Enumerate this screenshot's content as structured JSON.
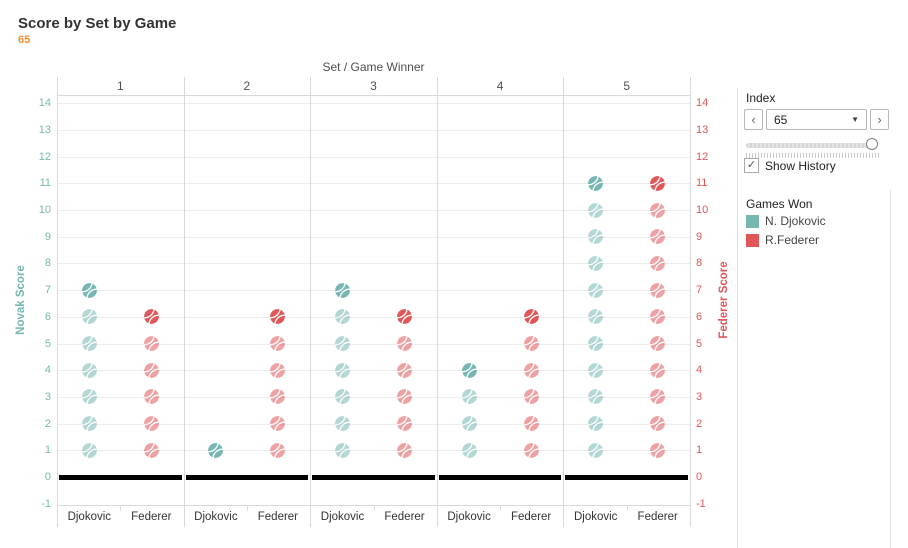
{
  "header": {
    "title": "Score by Set by Game",
    "index_value": "65"
  },
  "chart_data": {
    "type": "scatter",
    "title": "Score by Set by Game",
    "col_header": "Set / Game Winner",
    "marker": "tennis-ball-icon",
    "left_axis": {
      "label": "Novak Score",
      "color": "#76B7B2"
    },
    "right_axis": {
      "label": "Federer Score",
      "color": "#E15759"
    },
    "y_ticks": [
      14,
      13,
      12,
      11,
      10,
      9,
      8,
      7,
      6,
      5,
      4,
      3,
      2,
      1,
      0,
      -1
    ],
    "ylim": [
      -1.1,
      14.4
    ],
    "grid": true,
    "zero_line_color": "#000000",
    "history_shown": true,
    "categories": [
      "1",
      "2",
      "3",
      "4",
      "5"
    ],
    "column_labels": [
      "Djokovic",
      "Federer"
    ],
    "series": [
      {
        "name": "Djokovic",
        "color": "#76B7B2",
        "scores_by_set": [
          7,
          1,
          7,
          4,
          11
        ]
      },
      {
        "name": "Federer",
        "color": "#E15759",
        "scores_by_set": [
          6,
          6,
          6,
          6,
          11
        ]
      }
    ]
  },
  "side_panel": {
    "index": {
      "label": "Index",
      "value": "65",
      "prev_icon": "‹",
      "next_icon": "›",
      "caret_icon": "▼"
    },
    "show_history": {
      "label": "Show History",
      "checked": true,
      "check_icon": "✓"
    },
    "legend": {
      "title": "Games Won",
      "items": [
        {
          "label": "N. Djokovic",
          "color": "#76B7B2"
        },
        {
          "label": "R.Federer",
          "color": "#E15759"
        }
      ]
    }
  },
  "colors": {
    "teal": "#76B7B2",
    "red": "#E15759",
    "orange": "#F28E2B",
    "zero_line": "#000000"
  }
}
